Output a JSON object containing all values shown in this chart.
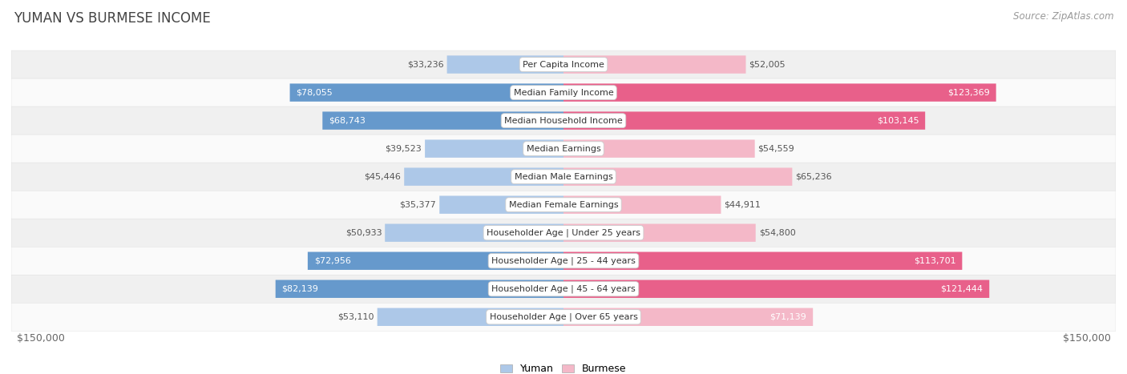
{
  "title": "YUMAN VS BURMESE INCOME",
  "source": "Source: ZipAtlas.com",
  "categories": [
    "Per Capita Income",
    "Median Family Income",
    "Median Household Income",
    "Median Earnings",
    "Median Male Earnings",
    "Median Female Earnings",
    "Householder Age | Under 25 years",
    "Householder Age | 25 - 44 years",
    "Householder Age | 45 - 64 years",
    "Householder Age | Over 65 years"
  ],
  "yuman_values": [
    33236,
    78055,
    68743,
    39523,
    45446,
    35377,
    50933,
    72956,
    82139,
    53110
  ],
  "burmese_values": [
    52005,
    123369,
    103145,
    54559,
    65236,
    44911,
    54800,
    113701,
    121444,
    71139
  ],
  "yuman_color_light": "#adc8e8",
  "yuman_color_dark": "#6699cc",
  "burmese_color_light": "#f4b8c8",
  "burmese_color_dark": "#e8608a",
  "label_color_dark": "#555555",
  "label_color_white": "#ffffff",
  "row_bg_odd": "#f0f0f0",
  "row_bg_even": "#fafafa",
  "max_value": 150000,
  "x_label_left": "$150,000",
  "x_label_right": "$150,000",
  "legend_yuman": "Yuman",
  "legend_burmese": "Burmese",
  "title_fontsize": 12,
  "source_fontsize": 8.5,
  "bar_label_fontsize": 8,
  "category_fontsize": 8,
  "axis_fontsize": 9,
  "white_label_threshold": 0.45
}
